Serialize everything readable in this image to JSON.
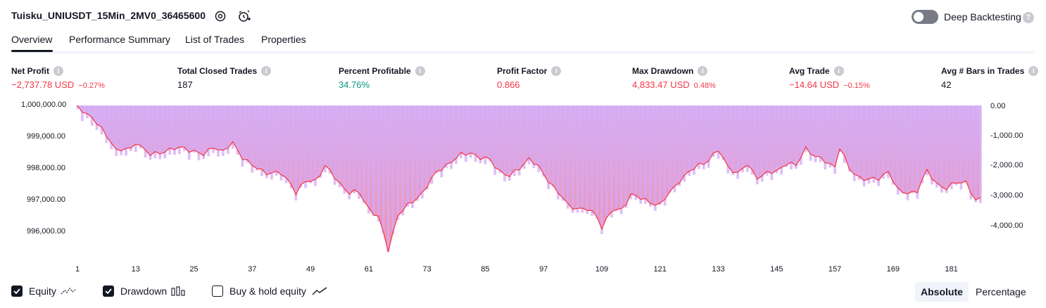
{
  "header": {
    "strategy_title": "Tuisku_UNIUSDT_15Min_2MV0_36465600",
    "settings_icon": "gear-icon",
    "alert_icon": "add-alarm-icon",
    "deep_backtesting_label": "Deep Backtesting",
    "deep_backtesting_enabled": false,
    "help_icon": "question-icon"
  },
  "tabs": [
    {
      "label": "Overview",
      "active": true
    },
    {
      "label": "Performance Summary",
      "active": false
    },
    {
      "label": "List of Trades",
      "active": false
    },
    {
      "label": "Properties",
      "active": false
    }
  ],
  "metrics": [
    {
      "label": "Net Profit",
      "value": "−2,737.78 USD",
      "pct": "−0.27%",
      "tone": "neg"
    },
    {
      "label": "Total Closed Trades",
      "value": "187",
      "pct": "",
      "tone": ""
    },
    {
      "label": "Percent Profitable",
      "value": "34.76%",
      "pct": "",
      "tone": "pos"
    },
    {
      "label": "Profit Factor",
      "value": "0.866",
      "pct": "",
      "tone": "neg"
    },
    {
      "label": "Max Drawdown",
      "value": "4,833.47 USD",
      "pct": "0.48%",
      "tone": "neg"
    },
    {
      "label": "Avg Trade",
      "value": "−14.64 USD",
      "pct": "−0.15%",
      "tone": "neg"
    },
    {
      "label": "Avg # Bars in Trades",
      "value": "42",
      "pct": "",
      "tone": ""
    }
  ],
  "chart_data": {
    "type": "line",
    "left_axis": {
      "label": "Equity",
      "ticks": [
        "1,000,000.00",
        "999,000.00",
        "998,000.00",
        "997,000.00",
        "996,000.00"
      ],
      "tick_values": [
        1000000,
        999000,
        998000,
        997000,
        996000
      ],
      "range": [
        995300,
        1000000
      ]
    },
    "right_axis": {
      "label": "Drawdown",
      "ticks": [
        "0.00",
        "-1,000.00",
        "-2,000.00",
        "-3,000.00",
        "-4,000.00"
      ],
      "tick_values": [
        0,
        -1000,
        -2000,
        -3000,
        -4000
      ],
      "range": [
        -4850,
        0
      ]
    },
    "x_axis": {
      "ticks": [
        "1",
        "13",
        "25",
        "37",
        "49",
        "61",
        "73",
        "85",
        "97",
        "109",
        "121",
        "133",
        "145",
        "157",
        "169",
        "181"
      ],
      "range": [
        1,
        187
      ]
    },
    "equity_keyframes": [
      [
        1,
        1000000
      ],
      [
        4,
        999600
      ],
      [
        8,
        998850
      ],
      [
        9,
        998550
      ],
      [
        12,
        998600
      ],
      [
        13,
        998850
      ],
      [
        14,
        998700
      ],
      [
        16,
        998400
      ],
      [
        19,
        998550
      ],
      [
        23,
        998650
      ],
      [
        27,
        998400
      ],
      [
        29,
        998700
      ],
      [
        31,
        998500
      ],
      [
        33,
        998800
      ],
      [
        35,
        998350
      ],
      [
        37,
        998050
      ],
      [
        40,
        997850
      ],
      [
        43,
        997800
      ],
      [
        45,
        997500
      ],
      [
        46,
        997200
      ],
      [
        48,
        997550
      ],
      [
        50,
        997600
      ],
      [
        52,
        998050
      ],
      [
        55,
        997500
      ],
      [
        57,
        997200
      ],
      [
        59,
        997200
      ],
      [
        61,
        996700
      ],
      [
        63,
        996400
      ],
      [
        65,
        995350
      ],
      [
        67,
        996500
      ],
      [
        70,
        996900
      ],
      [
        72,
        997200
      ],
      [
        75,
        997850
      ],
      [
        77,
        998100
      ],
      [
        80,
        998400
      ],
      [
        82,
        998500
      ],
      [
        84,
        998300
      ],
      [
        86,
        998250
      ],
      [
        88,
        997900
      ],
      [
        90,
        997700
      ],
      [
        92,
        998000
      ],
      [
        94,
        998300
      ],
      [
        96,
        998000
      ],
      [
        98,
        997600
      ],
      [
        100,
        997200
      ],
      [
        102,
        996800
      ],
      [
        104,
        996700
      ],
      [
        106,
        996650
      ],
      [
        108,
        996450
      ],
      [
        109,
        996100
      ],
      [
        111,
        996600
      ],
      [
        113,
        996650
      ],
      [
        115,
        997150
      ],
      [
        117,
        997000
      ],
      [
        119,
        996900
      ],
      [
        121,
        996800
      ],
      [
        123,
        997200
      ],
      [
        125,
        997600
      ],
      [
        127,
        997850
      ],
      [
        129,
        998100
      ],
      [
        131,
        998250
      ],
      [
        133,
        998550
      ],
      [
        135,
        998050
      ],
      [
        137,
        997800
      ],
      [
        139,
        998100
      ],
      [
        141,
        997700
      ],
      [
        143,
        997800
      ],
      [
        145,
        997900
      ],
      [
        147,
        998150
      ],
      [
        149,
        998050
      ],
      [
        151,
        998650
      ],
      [
        153,
        998350
      ],
      [
        155,
        998200
      ],
      [
        157,
        998050
      ],
      [
        158,
        998650
      ],
      [
        160,
        997950
      ],
      [
        162,
        997700
      ],
      [
        164,
        997600
      ],
      [
        166,
        997650
      ],
      [
        168,
        997900
      ],
      [
        170,
        997250
      ],
      [
        172,
        997200
      ],
      [
        174,
        997250
      ],
      [
        176,
        997900
      ],
      [
        178,
        997500
      ],
      [
        180,
        997300
      ],
      [
        182,
        997550
      ],
      [
        184,
        997550
      ],
      [
        186,
        996900
      ],
      [
        187,
        997020
      ]
    ]
  },
  "legend": {
    "items": [
      {
        "label": "Equity",
        "checked": true,
        "icon": "equity-line-icon"
      },
      {
        "label": "Drawdown",
        "checked": true,
        "icon": "drawdown-bars-icon"
      },
      {
        "label": "Buy & hold equity",
        "checked": false,
        "icon": "buy-hold-line-icon"
      }
    ],
    "absolute_label": "Absolute",
    "percentage_label": "Percentage",
    "mode": "Absolute"
  },
  "colors": {
    "negative": "#f23645",
    "positive": "#089981",
    "equity_line": "#f23645",
    "drawdown_bar": "#d4a9f5",
    "fill_top": "#d6b1f3",
    "fill_bottom": "#f38da8"
  }
}
